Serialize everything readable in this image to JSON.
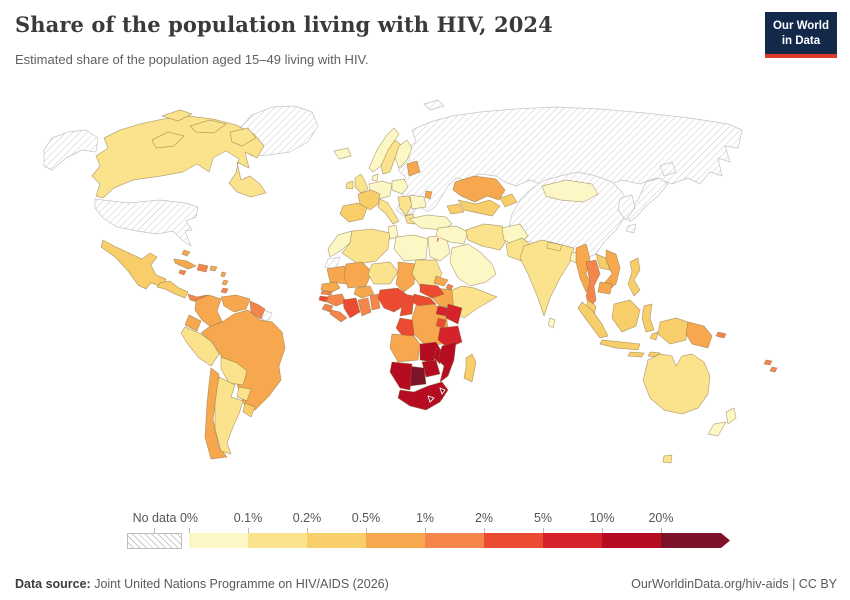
{
  "header": {
    "title": "Share of the population living with HIV, 2024",
    "subtitle": "Estimated share of the population aged 15–49 living with HIV."
  },
  "logo": {
    "line1": "Our World",
    "line2": "in Data"
  },
  "legend": {
    "no_data_label": "No data"
  },
  "footer": {
    "source_label": "Data source:",
    "source_text": " Joint United Nations Programme on HIV/AIDS (2026)",
    "right_text": "OurWorldinData.org/hiv-aids | CC BY"
  },
  "chart_data": {
    "type": "choropleth_map",
    "title": "Share of the population living with HIV, 2024",
    "unit": "%",
    "legend_position": "bottom",
    "bins": {
      "thresholds": [
        "0%",
        "0.1%",
        "0.2%",
        "0.5%",
        "1%",
        "2%",
        "5%",
        "10%",
        "20%"
      ],
      "colors": [
        "#FDF7C6",
        "#FBE28C",
        "#F8CE6B",
        "#F7A84E",
        "#F5854B",
        "#EB4C31",
        "#D6232B",
        "#B60C22",
        "#7D1228"
      ]
    },
    "map_style": {
      "border": "rgba(130,105,60,0.55)",
      "no_data_border": "#c4c4c4",
      "ocean": "#ffffff"
    },
    "regions": {
      "greenland": "no-data",
      "alaska": "no-data",
      "usa": "no-data",
      "russia": "no-data",
      "china": "no-data",
      "japan-hokkaido": "no-data",
      "japan-honshu": "no-data",
      "japan-kyushu": "no-data",
      "korea": "no-data",
      "western-sahara": "no-data",
      "french-guiana": "no-data",
      "svalbard": "no-data",
      "canada": 1,
      "arctic-1": 1,
      "arctic-2": 1,
      "arctic-3": 1,
      "arctic-4": 1,
      "mexico": 2,
      "central-america": 2,
      "panama": 4,
      "cuba": 3,
      "bahamas": 3,
      "hispaniola": 4,
      "jamaica": 4,
      "puerto-rico": 3,
      "antilles-1": 3,
      "antilles-2": 3,
      "trinidad": 4,
      "colombia": 3,
      "venezuela": 3,
      "guyana-suriname": 4,
      "ecuador": 3,
      "peru": 1,
      "brazil": 3,
      "bolivia": 1,
      "paraguay": 1,
      "chile": 3,
      "argentina": 1,
      "uruguay": 2,
      "iceland": 0,
      "norway": 0,
      "sweden": 1,
      "finland": 0,
      "uk": 1,
      "ireland": 1,
      "denmark": 0,
      "germany-central": 0,
      "poland": 0,
      "baltics": 3,
      "france": 2,
      "iberia": 2,
      "italy": 1,
      "balkans": 1,
      "greece": 1,
      "romania-bulgaria": 0,
      "moldova": 3,
      "turkey": 0,
      "caucasus": 2,
      "morocco": 0,
      "algeria": 1,
      "tunisia": 0,
      "libya": 0,
      "egypt": 0,
      "mauritania": 3,
      "mali": 3,
      "niger": 1,
      "chad": 3,
      "sudan": 1,
      "eritrea": 3,
      "djibouti": 4,
      "ethiopia": 3,
      "somalia": 1,
      "senegal": 3,
      "gambia": 4,
      "guinea-bissau": 5,
      "guinea": 4,
      "sierra-leone": 4,
      "liberia": 4,
      "cote-divoire": 5,
      "burkina-faso": 3,
      "ghana": 4,
      "togo-benin": 4,
      "nigeria": 5,
      "cameroon": 5,
      "central-african-republic": 5,
      "south-sudan": 5,
      "gabon-congo": 5,
      "drc": 3,
      "uganda": 6,
      "kenya": 6,
      "rwanda-burundi": 5,
      "tanzania": 6,
      "angola": 3,
      "zambia": 7,
      "malawi": 7,
      "mozambique": 7,
      "zimbabwe": 7,
      "botswana": 8,
      "namibia": 7,
      "south-africa": 7,
      "lesotho": 8,
      "eswatini": 8,
      "madagascar": 2,
      "levant-iraq": 0,
      "israel": 4,
      "arabian-peninsula": 0,
      "iran": 1,
      "afghanistan": 0,
      "pakistan": 1,
      "india": 1,
      "nepal": 1,
      "bangladesh": 0,
      "sri-lanka": 0,
      "myanmar": 3,
      "thailand": 4,
      "laos": 2,
      "vietnam": 3,
      "cambodia": 3,
      "malaysia": 2,
      "sumatra": 2,
      "java": 2,
      "borneo": 2,
      "sulawesi": 2,
      "philippines": 2,
      "lesser-sunda-1": 2,
      "lesser-sunda-2": 2,
      "moluccas": 2,
      "new-guinea-west": 2,
      "papua-new-guinea": 3,
      "solomon-islands": 4,
      "fiji-1": 4,
      "fiji-2": 4,
      "mongolia": 0,
      "kazakhstan": 3,
      "uzbekistan-turkmenistan": 2,
      "kyrgyzstan-tajikistan": 2,
      "australia": 1,
      "tasmania": 1,
      "nz-north": 0,
      "nz-south": 0
    }
  }
}
